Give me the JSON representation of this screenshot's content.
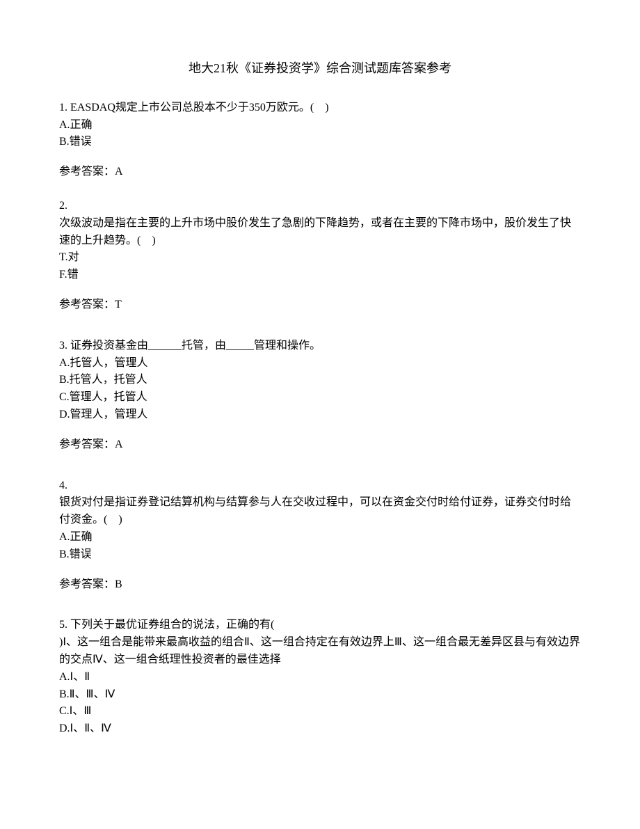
{
  "title": "地大21秋《证券投资学》综合测试题库答案参考",
  "questions": [
    {
      "number": "1. ",
      "text": "EASDAQ规定上市公司总股本不少于350万欧元。(　)",
      "options": [
        "A.正确",
        "B.错误"
      ],
      "answer_label": "参考答案：",
      "answer": "A"
    },
    {
      "number": "2.",
      "text": "次级波动是指在主要的上升市场中股价发生了急剧的下降趋势，或者在主要的下降市场中，股价发生了快速的上升趋势。(　)",
      "options": [
        "T.对",
        "F.错"
      ],
      "answer_label": "参考答案：",
      "answer": "T"
    },
    {
      "number": "3. ",
      "text": "证券投资基金由______托管，由_____管理和操作。",
      "options": [
        "A.托管人，管理人",
        "B.托管人，托管人",
        "C.管理人，托管人",
        "D.管理人，管理人"
      ],
      "answer_label": "参考答案：",
      "answer": "A"
    },
    {
      "number": "4.",
      "text": "银货对付是指证券登记结算机构与结算参与人在交收过程中，可以在资金交付时给付证券，证券交付时给付资金。(　)",
      "options": [
        "A.正确",
        "B.错误"
      ],
      "answer_label": "参考答案：",
      "answer": "B"
    },
    {
      "number": "5. ",
      "text": "下列关于最优证券组合的说法，正确的有(\n)Ⅰ、这一组合是能带来最高收益的组合Ⅱ、这一组合持定在有效边界上Ⅲ、这一组合最无差异区县与有效边界的交点Ⅳ、这一组合纸理性投资者的最佳选择",
      "options": [
        "A.Ⅰ、Ⅱ",
        "B.Ⅱ、Ⅲ、Ⅳ",
        "C.Ⅰ、Ⅲ",
        "D.Ⅰ、Ⅱ、Ⅳ"
      ],
      "answer_label": "",
      "answer": ""
    }
  ]
}
